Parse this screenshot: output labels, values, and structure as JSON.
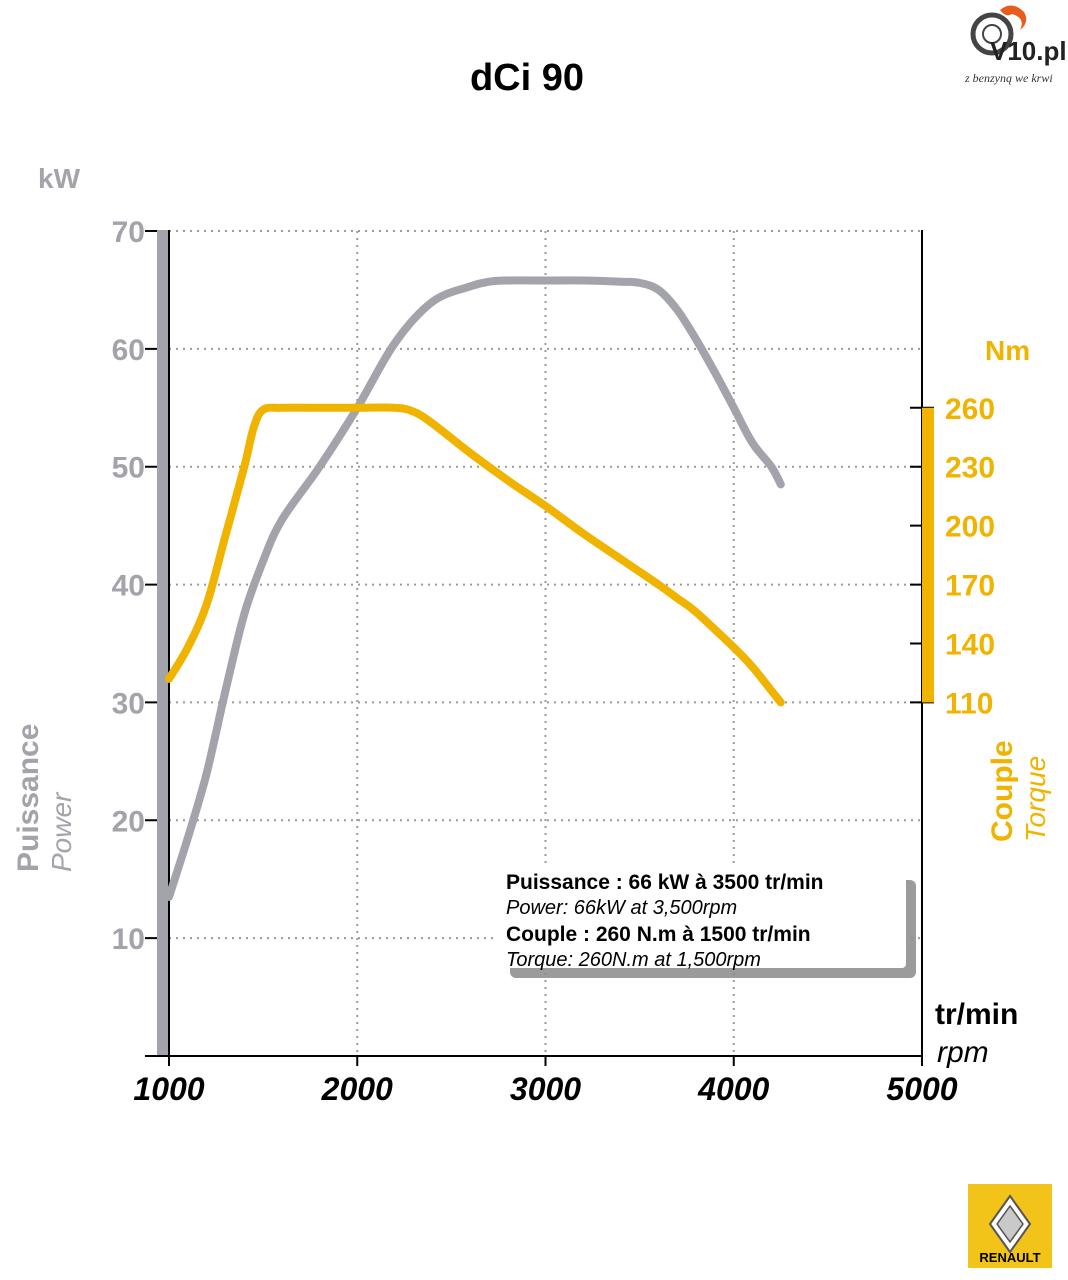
{
  "logo": {
    "name": "V10.pl",
    "tagline": "z benzyną we krwi"
  },
  "brand": {
    "name": "RENAULT",
    "color": "#f2c318"
  },
  "colors": {
    "power": "#a3a3ab",
    "torque": "#f0b300"
  },
  "chart_data": {
    "type": "line",
    "title": "dCi 90",
    "x_unit": "tr/min",
    "x_unit_en": "rpm",
    "x_ticks": [
      1000,
      2000,
      3000,
      4000,
      5000
    ],
    "xlim": [
      1000,
      5000
    ],
    "grid": true,
    "y_left": {
      "label": "Puissance",
      "label_en": "Power",
      "unit": "kW",
      "ylim": [
        0,
        70
      ],
      "ticks": [
        10,
        20,
        30,
        40,
        50,
        60,
        70
      ]
    },
    "y_right": {
      "label": "Couple",
      "label_en": "Torque",
      "unit": "Nm",
      "ylim": [
        110,
        260
      ],
      "ticks": [
        110,
        140,
        170,
        200,
        230,
        260
      ]
    },
    "series": [
      {
        "axis": "left",
        "x": [
          1000,
          1100,
          1200,
          1300,
          1400,
          1500,
          1600,
          1800,
          2000,
          2200,
          2400,
          2600,
          2700,
          2800,
          3000,
          3200,
          3400,
          3500,
          3600,
          3700,
          3800,
          3900,
          4000,
          4100,
          4200,
          4250
        ],
        "y": [
          13.5,
          18.5,
          24,
          31,
          37.5,
          42,
          45.5,
          50,
          55,
          60.5,
          64,
          65.3,
          65.7,
          65.8,
          65.8,
          65.8,
          65.7,
          65.6,
          65,
          63.3,
          60.8,
          58,
          55,
          52,
          50,
          48.5
        ]
      },
      {
        "axis": "right",
        "x": [
          1000,
          1100,
          1200,
          1300,
          1400,
          1450,
          1500,
          1600,
          1800,
          2000,
          2200,
          2300,
          2400,
          2600,
          2800,
          3000,
          3200,
          3400,
          3600,
          3700,
          3800,
          4000,
          4100,
          4200,
          4250
        ],
        "y": [
          122,
          138,
          160,
          195,
          230,
          250,
          259,
          260,
          260,
          260,
          260,
          258,
          252,
          237,
          223,
          210,
          196,
          183,
          170,
          163,
          156,
          138,
          128,
          116,
          110
        ]
      }
    ],
    "annotations": [
      "Puissance : 66 kW à 3500 tr/min",
      "Power: 66kW at 3,500rpm",
      "Couple : 260 N.m à 1500 tr/min",
      "Torque: 260N.m at 1,500rpm"
    ]
  }
}
